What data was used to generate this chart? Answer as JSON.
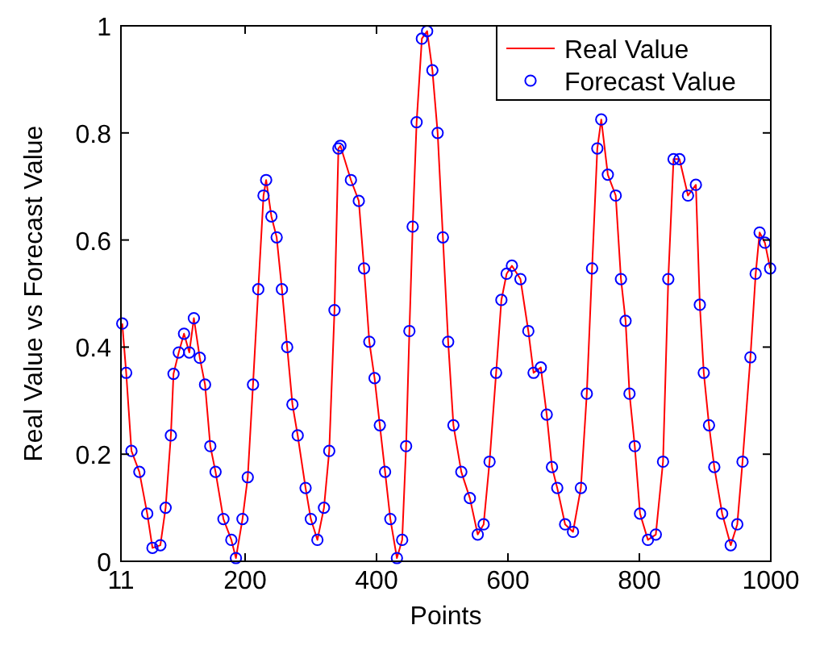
{
  "chart_data": {
    "type": "line",
    "xlabel": "Points",
    "ylabel": "Real Value vs Forecast Value",
    "xlim": [
      11,
      1000
    ],
    "ylim": [
      0,
      1
    ],
    "xticks": [
      11,
      200,
      400,
      600,
      800,
      1000
    ],
    "yticks": [
      0,
      0.2,
      0.4,
      0.6,
      0.8,
      1
    ],
    "legend": "top right",
    "grid": false,
    "x": [
      13,
      19,
      27,
      39,
      51,
      59,
      71,
      79,
      87,
      91,
      99,
      107,
      115,
      122,
      131,
      139,
      147,
      155,
      167,
      179,
      186,
      196,
      204,
      212,
      220,
      228,
      232,
      240,
      248,
      256,
      264,
      272,
      280,
      292,
      300,
      310,
      320,
      328,
      336,
      342,
      345,
      361,
      373,
      381,
      389,
      397,
      405,
      413,
      421,
      431,
      439,
      445,
      450,
      455,
      461,
      469,
      477,
      485,
      493,
      501,
      509,
      517,
      529,
      542,
      554,
      563,
      572,
      582,
      590,
      598,
      606,
      619,
      631,
      639,
      650,
      659,
      667,
      675,
      687,
      699,
      711,
      720,
      728,
      736,
      742,
      752,
      764,
      772,
      779,
      785,
      793,
      801,
      813,
      825,
      836,
      844,
      852,
      861,
      874,
      886,
      892,
      898,
      906,
      914,
      926,
      939,
      949,
      957,
      969,
      977,
      983,
      991,
      999
    ],
    "series": [
      {
        "name": "Real Value",
        "color": "#ff0000",
        "marker": "none",
        "line_style": "solid",
        "values": [
          0.444,
          0.352,
          0.206,
          0.167,
          0.089,
          0.025,
          0.03,
          0.1,
          0.235,
          0.35,
          0.39,
          0.425,
          0.39,
          0.454,
          0.38,
          0.33,
          0.215,
          0.167,
          0.079,
          0.04,
          0.006,
          0.079,
          0.157,
          0.33,
          0.508,
          0.683,
          0.712,
          0.644,
          0.605,
          0.508,
          0.4,
          0.293,
          0.235,
          0.137,
          0.079,
          0.04,
          0.1,
          0.206,
          0.469,
          0.771,
          0.776,
          0.712,
          0.673,
          0.547,
          0.41,
          0.342,
          0.254,
          0.167,
          0.079,
          0.006,
          0.04,
          0.215,
          0.43,
          0.625,
          0.82,
          0.976,
          0.99,
          0.917,
          0.8,
          0.605,
          0.41,
          0.254,
          0.167,
          0.118,
          0.05,
          0.069,
          0.186,
          0.352,
          0.488,
          0.537,
          0.552,
          0.527,
          0.43,
          0.352,
          0.362,
          0.274,
          0.176,
          0.137,
          0.069,
          0.055,
          0.137,
          0.313,
          0.547,
          0.771,
          0.825,
          0.722,
          0.683,
          0.527,
          0.449,
          0.313,
          0.215,
          0.089,
          0.04,
          0.05,
          0.186,
          0.527,
          0.751,
          0.751,
          0.683,
          0.703,
          0.479,
          0.352,
          0.254,
          0.176,
          0.089,
          0.03,
          0.069,
          0.186,
          0.381,
          0.537,
          0.614,
          0.595,
          0.547
        ]
      },
      {
        "name": "Forecast Value",
        "type": "scatter",
        "color": "#0000ff",
        "marker": "circle",
        "values": [
          0.444,
          0.352,
          0.206,
          0.167,
          0.089,
          0.025,
          0.03,
          0.1,
          0.235,
          0.35,
          0.39,
          0.425,
          0.39,
          0.454,
          0.38,
          0.33,
          0.215,
          0.167,
          0.079,
          0.04,
          0.006,
          0.079,
          0.157,
          0.33,
          0.508,
          0.683,
          0.712,
          0.644,
          0.605,
          0.508,
          0.4,
          0.293,
          0.235,
          0.137,
          0.079,
          0.04,
          0.1,
          0.206,
          0.469,
          0.771,
          0.776,
          0.712,
          0.673,
          0.547,
          0.41,
          0.342,
          0.254,
          0.167,
          0.079,
          0.006,
          0.04,
          0.215,
          0.43,
          0.625,
          0.82,
          0.976,
          0.99,
          0.917,
          0.8,
          0.605,
          0.41,
          0.254,
          0.167,
          0.118,
          0.05,
          0.069,
          0.186,
          0.352,
          0.488,
          0.537,
          0.552,
          0.527,
          0.43,
          0.352,
          0.362,
          0.274,
          0.176,
          0.137,
          0.069,
          0.055,
          0.137,
          0.313,
          0.547,
          0.771,
          0.825,
          0.722,
          0.683,
          0.527,
          0.449,
          0.313,
          0.215,
          0.089,
          0.04,
          0.05,
          0.186,
          0.527,
          0.751,
          0.751,
          0.683,
          0.703,
          0.479,
          0.352,
          0.254,
          0.176,
          0.089,
          0.03,
          0.069,
          0.186,
          0.381,
          0.537,
          0.614,
          0.595,
          0.547
        ]
      }
    ]
  }
}
